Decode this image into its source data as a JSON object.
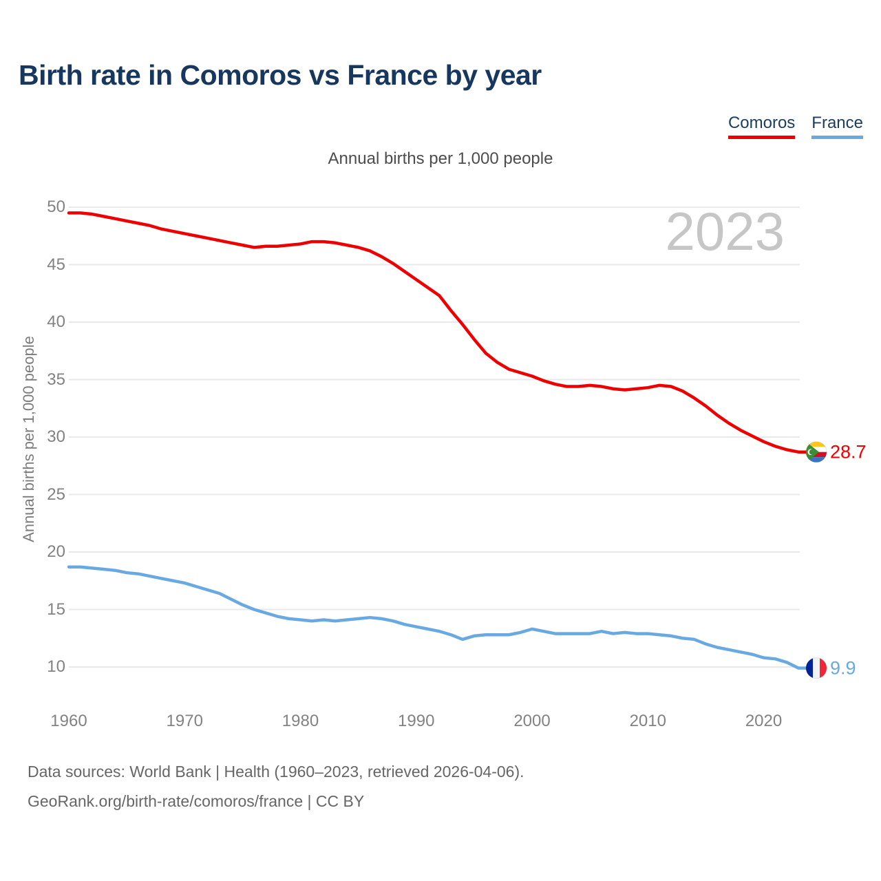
{
  "page": {
    "title": "Birth rate in Comoros vs France by year"
  },
  "legend": {
    "items": [
      {
        "label": "Comoros",
        "color": "#ee0000"
      },
      {
        "label": "France",
        "color": "#68a9e2"
      }
    ]
  },
  "subtitle": "Annual births per 1,000 people",
  "watermark": "2023",
  "footer": {
    "line1": "Data sources: World Bank | Health (1960–2023, retrieved 2026-04-06).",
    "line2": "GeoRank.org/birth-rate/comoros/france | CC BY"
  },
  "chart_data": {
    "type": "line",
    "title": "Birth rate in Comoros vs France by year",
    "ylabel": "Annual births per 1,000 people",
    "xlabel": "",
    "grid": true,
    "legend_position": "top-right",
    "ylim": [
      10,
      50
    ],
    "yticks": [
      10,
      15,
      20,
      25,
      30,
      35,
      40,
      45,
      50
    ],
    "xticks": [
      1960,
      1970,
      1980,
      1990,
      2000,
      2010,
      2020
    ],
    "x": [
      1960,
      1961,
      1962,
      1963,
      1964,
      1965,
      1966,
      1967,
      1968,
      1969,
      1970,
      1971,
      1972,
      1973,
      1974,
      1975,
      1976,
      1977,
      1978,
      1979,
      1980,
      1981,
      1982,
      1983,
      1984,
      1985,
      1986,
      1987,
      1988,
      1989,
      1990,
      1991,
      1992,
      1993,
      1994,
      1995,
      1996,
      1997,
      1998,
      1999,
      2000,
      2001,
      2002,
      2003,
      2004,
      2005,
      2006,
      2007,
      2008,
      2009,
      2010,
      2011,
      2012,
      2013,
      2014,
      2015,
      2016,
      2017,
      2018,
      2019,
      2020,
      2021,
      2022,
      2023
    ],
    "series": [
      {
        "name": "Comoros",
        "color": "#ee0000",
        "end_label": "28.7",
        "flag_icon": "comoros-flag-icon",
        "values": [
          49.5,
          49.5,
          49.4,
          49.2,
          49.0,
          48.8,
          48.6,
          48.4,
          48.1,
          47.9,
          47.7,
          47.5,
          47.3,
          47.1,
          46.9,
          46.7,
          46.5,
          46.6,
          46.6,
          46.7,
          46.8,
          47.0,
          47.0,
          46.9,
          46.7,
          46.5,
          46.2,
          45.7,
          45.1,
          44.4,
          43.7,
          43.0,
          42.3,
          41.0,
          39.8,
          38.5,
          37.3,
          36.5,
          35.9,
          35.6,
          35.3,
          34.9,
          34.6,
          34.4,
          34.4,
          34.5,
          34.4,
          34.2,
          34.1,
          34.2,
          34.3,
          34.5,
          34.4,
          34.0,
          33.4,
          32.7,
          31.9,
          31.2,
          30.6,
          30.1,
          29.6,
          29.2,
          28.9,
          28.7
        ]
      },
      {
        "name": "France",
        "color": "#68a9e2",
        "end_label": "9.9",
        "flag_icon": "france-flag-icon",
        "values": [
          18.7,
          18.7,
          18.6,
          18.5,
          18.4,
          18.2,
          18.1,
          17.9,
          17.7,
          17.5,
          17.3,
          17.0,
          16.7,
          16.4,
          15.9,
          15.4,
          15.0,
          14.7,
          14.4,
          14.2,
          14.1,
          14.0,
          14.1,
          14.0,
          14.1,
          14.2,
          14.3,
          14.2,
          14.0,
          13.7,
          13.5,
          13.3,
          13.1,
          12.8,
          12.4,
          12.7,
          12.8,
          12.8,
          12.8,
          13.0,
          13.3,
          13.1,
          12.9,
          12.9,
          12.9,
          12.9,
          13.1,
          12.9,
          13.0,
          12.9,
          12.9,
          12.8,
          12.7,
          12.5,
          12.4,
          12.0,
          11.7,
          11.5,
          11.3,
          11.1,
          10.8,
          10.7,
          10.4,
          9.9
        ]
      }
    ]
  }
}
